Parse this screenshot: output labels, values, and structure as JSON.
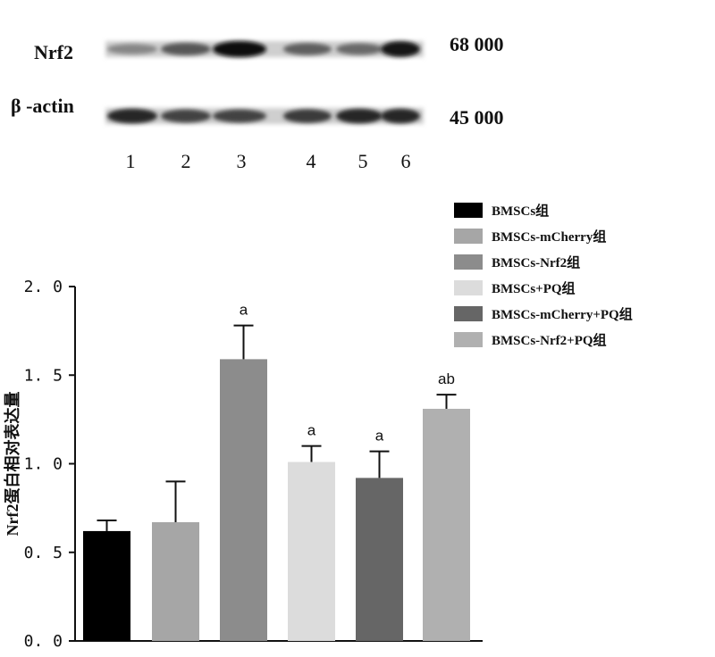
{
  "blot": {
    "rows": [
      {
        "label": "Nrf2",
        "mw": "68 000",
        "intensity": [
          0.35,
          0.6,
          1.0,
          0.55,
          0.5,
          0.95
        ]
      },
      {
        "label": "β -actin",
        "mw": "45 000",
        "intensity": [
          0.85,
          0.7,
          0.7,
          0.75,
          0.85,
          0.85
        ]
      }
    ],
    "lanes": [
      "1",
      "2",
      "3",
      "4",
      "5",
      "6"
    ]
  },
  "chart_data": {
    "type": "bar",
    "ylabel": "Nrf2蛋白相对表达量",
    "ylim": [
      0,
      2.0
    ],
    "yticks": [
      "0. 0",
      "0. 5",
      "1. 0",
      "1. 5",
      "2. 0"
    ],
    "ytick_values": [
      0,
      0.5,
      1.0,
      1.5,
      2.0
    ],
    "categories": [
      "BMSCs组",
      "BMSCs-mCherry组",
      "BMSCs-Nrf2组",
      "BMSCs+PQ组",
      "BMSCs-mCherry+PQ组",
      "BMSCs-Nrf2+PQ组"
    ],
    "values": [
      0.62,
      0.67,
      1.59,
      1.01,
      0.92,
      1.31
    ],
    "errors": [
      0.06,
      0.23,
      0.19,
      0.09,
      0.15,
      0.08
    ],
    "annotations": [
      "",
      "",
      "a",
      "a",
      "a",
      "ab"
    ],
    "colors": [
      "#000000",
      "#a6a6a6",
      "#8c8c8c",
      "#dcdcdc",
      "#666666",
      "#b0b0b0"
    ],
    "legend_position": "top-right"
  }
}
